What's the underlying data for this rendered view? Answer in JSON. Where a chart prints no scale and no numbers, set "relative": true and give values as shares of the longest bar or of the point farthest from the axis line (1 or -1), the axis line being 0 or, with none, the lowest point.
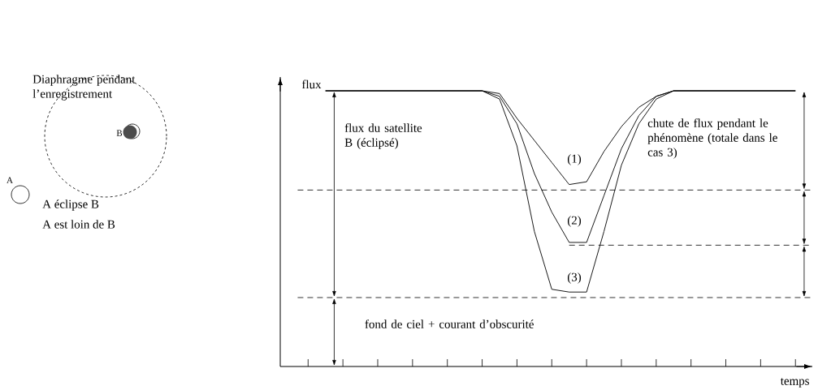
{
  "chart_data": {
    "type": "line",
    "relative": true,
    "xlabel": "temps",
    "ylabel": "flux",
    "tick_labels": false,
    "marker": "none",
    "line_style": "solid",
    "categories": [
      null,
      null,
      null,
      null,
      null,
      null,
      null,
      null,
      null,
      null,
      null,
      null,
      null,
      null,
      null,
      null,
      null,
      null,
      null,
      null,
      null,
      null,
      null,
      null,
      null,
      null,
      null,
      null,
      null
    ],
    "series": [
      {
        "color": "#000000",
        "values": [
          null,
          1,
          1,
          1,
          1,
          1,
          1,
          1,
          1,
          1,
          1,
          0.99,
          0.9,
          0.82,
          0.74,
          0.66,
          0.67,
          0.78,
          0.87,
          0.94,
          0.98,
          1,
          1,
          1,
          1,
          1,
          1,
          1,
          1
        ]
      },
      {
        "color": "#000000",
        "values": [
          null,
          1,
          1,
          1,
          1,
          1,
          1,
          1,
          1,
          1,
          1,
          0.98,
          0.88,
          0.7,
          0.56,
          0.45,
          0.45,
          0.62,
          0.79,
          0.91,
          0.98,
          1,
          1,
          1,
          1,
          1,
          1,
          1,
          1
        ]
      },
      {
        "color": "#000000",
        "values": [
          null,
          1,
          1,
          1,
          1,
          1,
          1,
          1,
          1,
          1,
          1,
          0.97,
          0.8,
          0.49,
          0.28,
          0.27,
          0.27,
          0.49,
          0.73,
          0.88,
          0.97,
          1,
          1,
          1,
          1,
          1,
          1,
          1,
          1
        ]
      }
    ],
    "ref_lines": [
      {
        "axis": "y",
        "value": 0.64,
        "line_style": "dashed"
      },
      {
        "axis": "y",
        "value": 0.44,
        "line_style": "dashed"
      },
      {
        "axis": "y",
        "value": 0.25,
        "line_style": "dashed"
      }
    ],
    "annotations": [
      "Diaphragme pendant l’enregistrement",
      "B",
      "A",
      "A éclipse B",
      "A est loin de B",
      "flux du satellite B (éclipsé)",
      "(1)",
      "(2)",
      "(3)",
      "chute de flux pendant le phénomène (totale dans le cas 3)",
      "fond de ciel + courant d’obscurité"
    ]
  }
}
